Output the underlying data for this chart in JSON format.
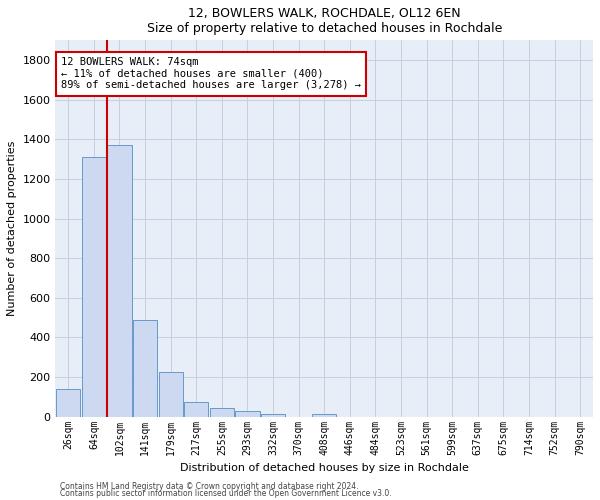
{
  "title1": "12, BOWLERS WALK, ROCHDALE, OL12 6EN",
  "title2": "Size of property relative to detached houses in Rochdale",
  "xlabel": "Distribution of detached houses by size in Rochdale",
  "ylabel": "Number of detached properties",
  "bar_labels": [
    "26sqm",
    "64sqm",
    "102sqm",
    "141sqm",
    "179sqm",
    "217sqm",
    "255sqm",
    "293sqm",
    "332sqm",
    "370sqm",
    "408sqm",
    "446sqm",
    "484sqm",
    "523sqm",
    "561sqm",
    "599sqm",
    "637sqm",
    "675sqm",
    "714sqm",
    "752sqm",
    "790sqm"
  ],
  "bar_values": [
    140,
    1310,
    1370,
    490,
    225,
    75,
    42,
    28,
    15,
    0,
    15,
    0,
    0,
    0,
    0,
    0,
    0,
    0,
    0,
    0,
    0
  ],
  "bar_color": "#ccd9f0",
  "bar_edge_color": "#6699cc",
  "vline_x": 1.5,
  "vline_color": "#cc0000",
  "annotation_line1": "12 BOWLERS WALK: 74sqm",
  "annotation_line2": "← 11% of detached houses are smaller (400)",
  "annotation_line3": "89% of semi-detached houses are larger (3,278) →",
  "annotation_box_color": "#cc0000",
  "ylim": [
    0,
    1900
  ],
  "yticks": [
    0,
    200,
    400,
    600,
    800,
    1000,
    1200,
    1400,
    1600,
    1800
  ],
  "footer1": "Contains HM Land Registry data © Crown copyright and database right 2024.",
  "footer2": "Contains public sector information licensed under the Open Government Licence v3.0.",
  "bg_color": "#e8eef8",
  "grid_color": "#c8d0e0"
}
